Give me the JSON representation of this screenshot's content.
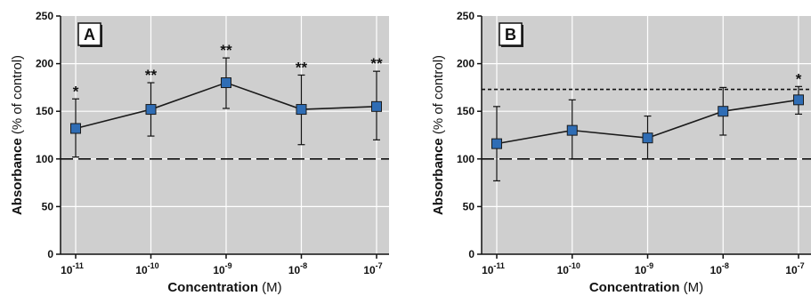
{
  "colors": {
    "plot_background": "#cfcfcf",
    "gridline": "#ffffff",
    "marker_fill": "#2f6db5",
    "marker_stroke": "#1a1a1a",
    "line": "#1a1a1a"
  },
  "chart_data": [
    {
      "panel": "A",
      "type": "line",
      "x_categories": [
        "10",
        "10",
        "10",
        "10",
        "10"
      ],
      "x_exponents": [
        "-11",
        "-10",
        "-9",
        "-8",
        "-7"
      ],
      "xlabel": "Concentration",
      "xlabel_unit": "(M)",
      "ylabel": "Absorbance",
      "ylabel_unit": "(% of control)",
      "ylim": [
        0,
        250
      ],
      "yticks": [
        "0",
        "50",
        "100",
        "150",
        "200",
        "250"
      ],
      "grid": true,
      "values": [
        132,
        152,
        180,
        152,
        155
      ],
      "err_low": [
        102,
        124,
        153,
        115,
        120
      ],
      "err_high": [
        163,
        180,
        206,
        188,
        192
      ],
      "significance": [
        "*",
        "**",
        "**",
        "**",
        "**"
      ],
      "reference_lines": [
        {
          "y": 100,
          "style": "long-dash"
        }
      ]
    },
    {
      "panel": "B",
      "type": "line",
      "x_categories": [
        "10",
        "10",
        "10",
        "10",
        "10"
      ],
      "x_exponents": [
        "-11",
        "-10",
        "-9",
        "-8",
        "-7"
      ],
      "xlabel": "Concentration",
      "xlabel_unit": "(M)",
      "ylabel": "Absorbance",
      "ylabel_unit": "(% of control)",
      "ylim": [
        0,
        250
      ],
      "yticks": [
        "0",
        "50",
        "100",
        "150",
        "200",
        "250"
      ],
      "grid": true,
      "values": [
        116,
        130,
        122,
        150,
        162
      ],
      "err_low": [
        77,
        100,
        100,
        125,
        147
      ],
      "err_high": [
        155,
        162,
        145,
        175,
        176
      ],
      "significance": [
        "",
        "",
        "",
        "",
        "*"
      ],
      "reference_lines": [
        {
          "y": 100,
          "style": "long-dash"
        },
        {
          "y": 173,
          "style": "short-dash"
        }
      ]
    }
  ]
}
